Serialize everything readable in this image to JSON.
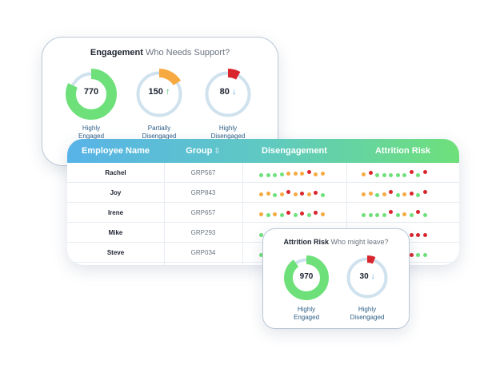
{
  "colors": {
    "green": "#6ee07a",
    "orange": "#f7a941",
    "red": "#d8262c",
    "ring": "#cfe2ee"
  },
  "engagement": {
    "title": "Engagement",
    "subtitle": "Who Needs Support?",
    "items": [
      {
        "value": "770",
        "arrow": "",
        "label_line1": "Highly",
        "label_line2": "Engaged",
        "fraction": 0.82,
        "color": "#6ee07a"
      },
      {
        "value": "150",
        "arrow": "↑",
        "label_line1": "Partially",
        "label_line2": "Disengaged",
        "fraction": 0.16,
        "color": "#f7a941"
      },
      {
        "value": "80",
        "arrow": "↓",
        "label_line1": "Highly",
        "label_line2": "Disengaged",
        "fraction": 0.08,
        "color": "#d8262c"
      }
    ]
  },
  "table": {
    "headers": {
      "name": "Employee Name",
      "group": "Group",
      "disengagement": "Disengagement",
      "attrition": "Attrition Risk"
    },
    "rows": [
      {
        "name": "Rachel",
        "group": "GRP567",
        "dis": [
          [
            "g",
            0
          ],
          [
            "g",
            0
          ],
          [
            "g",
            0
          ],
          [
            "g",
            -1
          ],
          [
            "o",
            -2
          ],
          [
            "o",
            -2
          ],
          [
            "o",
            -2
          ],
          [
            "r",
            -4
          ],
          [
            "o",
            -1
          ],
          [
            "o",
            -2
          ]
        ],
        "att": [
          [
            "o",
            -1
          ],
          [
            "r",
            -3
          ],
          [
            "g",
            0
          ],
          [
            "g",
            0
          ],
          [
            "g",
            0
          ],
          [
            "g",
            0
          ],
          [
            "g",
            0
          ],
          [
            "r",
            -4
          ],
          [
            "g",
            0
          ],
          [
            "r",
            -4
          ]
        ]
      },
      {
        "name": "Joy",
        "group": "GRP843",
        "dis": [
          [
            "o",
            -1
          ],
          [
            "o",
            -2
          ],
          [
            "g",
            0
          ],
          [
            "o",
            -1
          ],
          [
            "r",
            -4
          ],
          [
            "o",
            -1
          ],
          [
            "r",
            -2
          ],
          [
            "o",
            -1
          ],
          [
            "r",
            -3
          ],
          [
            "g",
            0
          ]
        ],
        "att": [
          [
            "o",
            -1
          ],
          [
            "o",
            -2
          ],
          [
            "g",
            0
          ],
          [
            "o",
            -1
          ],
          [
            "r",
            -4
          ],
          [
            "g",
            0
          ],
          [
            "o",
            -1
          ],
          [
            "r",
            -2
          ],
          [
            "g",
            0
          ],
          [
            "r",
            -4
          ]
        ]
      },
      {
        "name": "Irene",
        "group": "GRP657",
        "dis": [
          [
            "o",
            -1
          ],
          [
            "g",
            0
          ],
          [
            "o",
            -1
          ],
          [
            "g",
            0
          ],
          [
            "r",
            -3
          ],
          [
            "g",
            0
          ],
          [
            "r",
            -2
          ],
          [
            "g",
            0
          ],
          [
            "r",
            -3
          ],
          [
            "o",
            -1
          ]
        ],
        "att": [
          [
            "g",
            0
          ],
          [
            "g",
            0
          ],
          [
            "g",
            0
          ],
          [
            "g",
            0
          ],
          [
            "r",
            -4
          ],
          [
            "g",
            0
          ],
          [
            "o",
            -1
          ],
          [
            "g",
            0
          ],
          [
            "r",
            -4
          ],
          [
            "g",
            0
          ]
        ]
      },
      {
        "name": "Mike",
        "group": "GRP293",
        "dis": [
          [
            "g",
            0
          ],
          [
            "g",
            0
          ],
          [
            "g",
            0
          ],
          [
            "g",
            0
          ],
          [
            "g",
            0
          ],
          [
            "g",
            0
          ],
          [
            "g",
            0
          ],
          [
            "g",
            0
          ],
          [
            "g",
            0
          ],
          [
            "g",
            0
          ]
        ],
        "att": [
          [
            "g",
            0
          ],
          [
            "g",
            0
          ],
          [
            "g",
            0
          ],
          [
            "g",
            0
          ],
          [
            "g",
            0
          ],
          [
            "g",
            0
          ],
          [
            "r",
            0
          ],
          [
            "r",
            0
          ],
          [
            "r",
            0
          ],
          [
            "r",
            0
          ]
        ]
      },
      {
        "name": "Steve",
        "group": "GRP034",
        "dis": [
          [
            "g",
            0
          ],
          [
            "g",
            0
          ],
          [
            "g",
            0
          ],
          [
            "g",
            0
          ],
          [
            "g",
            0
          ],
          [
            "g",
            0
          ],
          [
            "g",
            0
          ],
          [
            "g",
            0
          ],
          [
            "g",
            0
          ],
          [
            "g",
            0
          ]
        ],
        "att": [
          [
            "g",
            0
          ],
          [
            "g",
            0
          ],
          [
            "g",
            0
          ],
          [
            "g",
            0
          ],
          [
            "g",
            0
          ],
          [
            "g",
            0
          ],
          [
            "g",
            0
          ],
          [
            "r",
            0
          ],
          [
            "g",
            0
          ],
          [
            "g",
            0
          ]
        ]
      }
    ]
  },
  "attrition": {
    "title": "Attrition Risk",
    "subtitle": "Who might leave?",
    "items": [
      {
        "value": "970",
        "arrow": "",
        "label_line1": "Highly",
        "label_line2": "Engaged",
        "fraction": 0.9,
        "color": "#6ee07a"
      },
      {
        "value": "30",
        "arrow": "↓",
        "label_line1": "Highly",
        "label_line2": "Disengaged",
        "fraction": 0.06,
        "color": "#d8262c"
      }
    ]
  }
}
